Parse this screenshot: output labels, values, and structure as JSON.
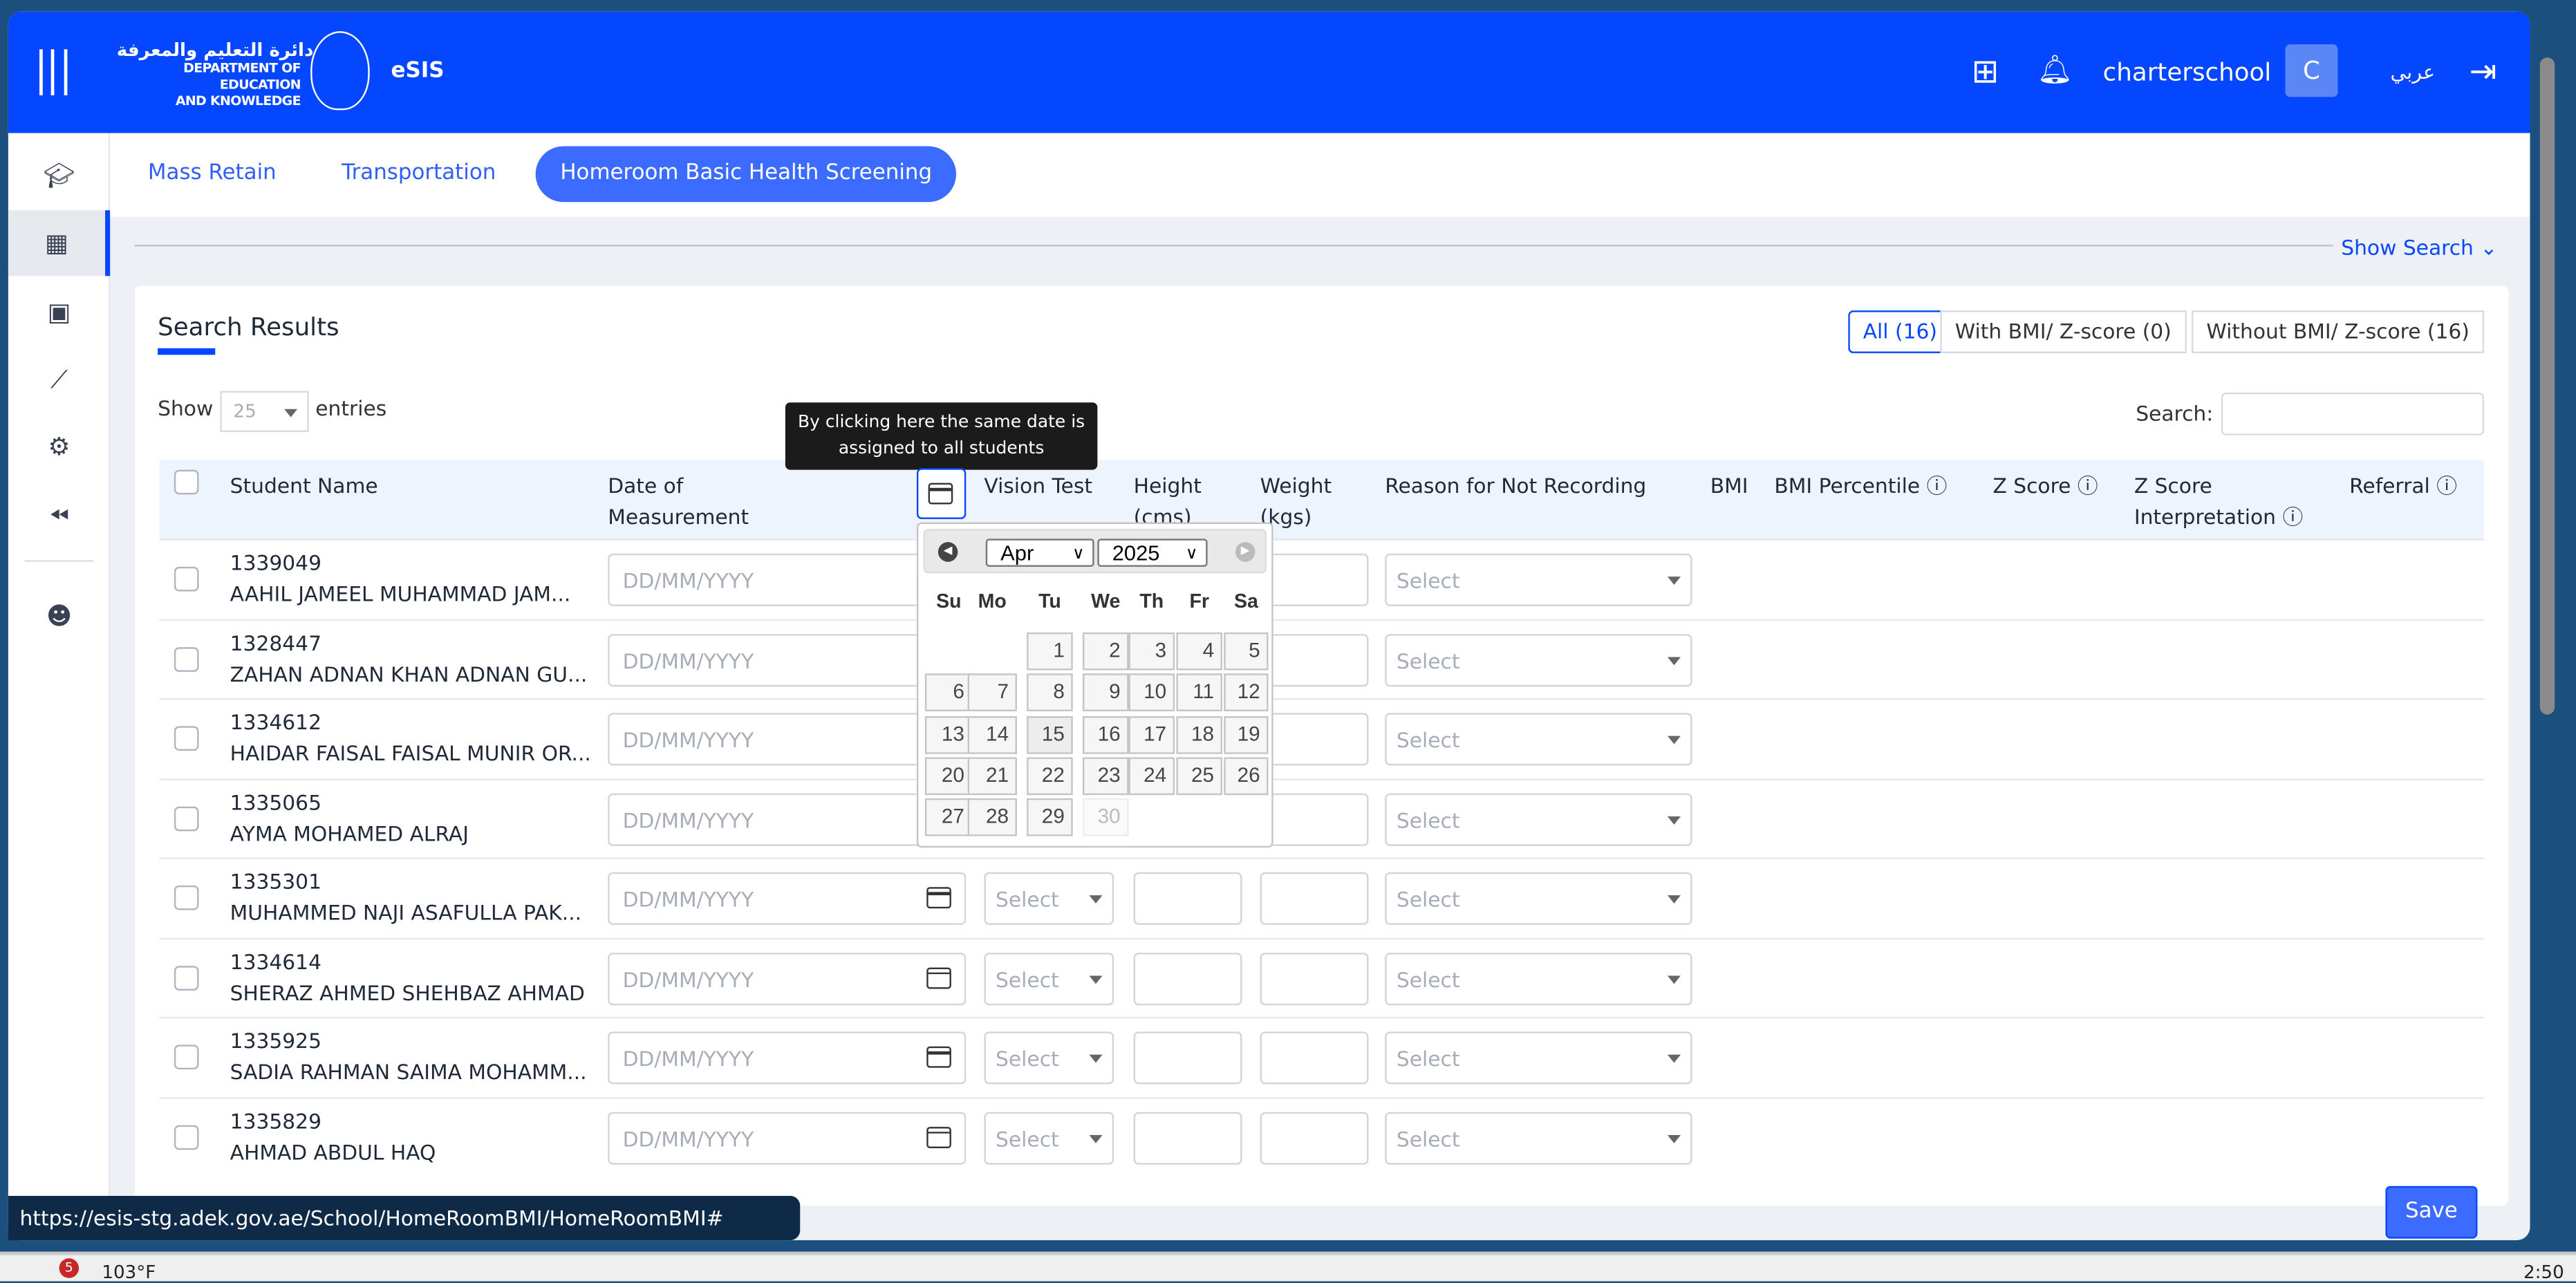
{
  "header": {
    "org_ar": "دائرة التعليم والمعرفة",
    "org_en_1": "DEPARTMENT OF EDUCATION",
    "org_en_2": "AND KNOWLEDGE",
    "app": "eSIS",
    "username": "charterschool",
    "avatar_letter": "C",
    "language": "عربي",
    "brand_color": "#0546ff"
  },
  "sidebar": {
    "items": [
      {
        "icon": "graduation-cap-icon"
      },
      {
        "icon": "building-icon",
        "active": true
      },
      {
        "icon": "calendar-check-icon"
      },
      {
        "icon": "chart-line-icon"
      },
      {
        "icon": "gear-icon"
      },
      {
        "icon": "backward-icon"
      },
      {
        "icon": "smiley-icon"
      }
    ]
  },
  "tabs": [
    {
      "label": "Mass Retain"
    },
    {
      "label": "Transportation"
    },
    {
      "label": "Homeroom Basic Health Screening",
      "active": true
    }
  ],
  "show_search": "Show Search",
  "results": {
    "title": "Search Results",
    "filters": [
      {
        "label": "All (16)",
        "active": true
      },
      {
        "label": "With BMI/ Z-score (0)"
      },
      {
        "label": "Without BMI/ Z-score (16)"
      }
    ],
    "show_label": "Show",
    "entries_value": "25",
    "entries_label": "entries",
    "search_label": "Search:",
    "columns": [
      "Student Name",
      "Date of Measurement",
      "Vision Test",
      "Height (cms)",
      "Weight (kgs)",
      "Reason for Not Recording",
      "BMI",
      "BMI Percentile",
      "Z Score",
      "Z Score Interpretation",
      "Referral"
    ],
    "date_placeholder": "DD/MM/YYYY",
    "select_placeholder": "Select",
    "rows": [
      {
        "id": "1339049",
        "name": "AAHIL JAMEEL MUHAMMAD JAM..."
      },
      {
        "id": "1328447",
        "name": "ZAHAN ADNAN KHAN ADNAN GU..."
      },
      {
        "id": "1334612",
        "name": "HAIDAR FAISAL FAISAL MUNIR OR..."
      },
      {
        "id": "1335065",
        "name": "AYMA MOHAMED ALRAJ"
      },
      {
        "id": "1335301",
        "name": "MUHAMMED NAJI ASAFULLA PAK..."
      },
      {
        "id": "1334614",
        "name": "SHERAZ AHMED SHEHBAZ AHMAD"
      },
      {
        "id": "1335925",
        "name": "SADIA RAHMAN SAIMA MOHAMM..."
      },
      {
        "id": "1335829",
        "name": "AHMAD ABDUL HAQ"
      }
    ]
  },
  "tooltip": {
    "line1": "By clicking here the same date is",
    "line2": "assigned to all students"
  },
  "calendar": {
    "month": "Apr",
    "year": "2025",
    "weekdays": [
      "Su",
      "Mo",
      "Tu",
      "We",
      "Th",
      "Fr",
      "Sa"
    ],
    "first_weekday": 2,
    "days": 30,
    "highlight": 15,
    "disabled": [
      30
    ]
  },
  "save_label": "Save",
  "status_url": "https://esis-stg.adek.gov.ae/School/HomeRoomBMI/HomeRoomBMI#",
  "taskbar": {
    "weather": "103°F",
    "badge": "5",
    "clock": "2:50"
  }
}
